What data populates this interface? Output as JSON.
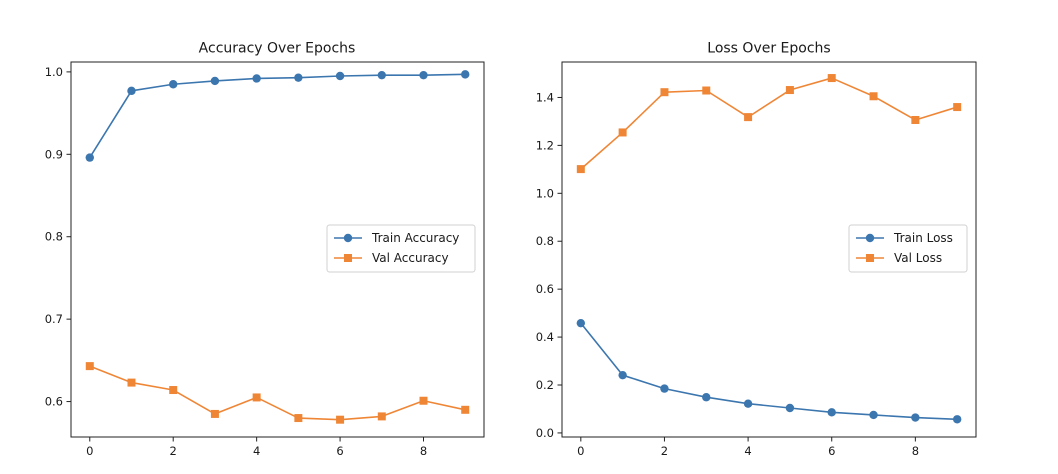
{
  "chart_data": [
    {
      "type": "line",
      "title": "Accuracy Over Epochs",
      "xlabel": "",
      "ylabel": "",
      "x": [
        0,
        1,
        2,
        3,
        4,
        5,
        6,
        7,
        8,
        9
      ],
      "xlim": [
        -0.45,
        9.45
      ],
      "ylim": [
        0.557,
        1.012
      ],
      "xticks": [
        0,
        2,
        4,
        6,
        8
      ],
      "yticks": [
        0.6,
        0.7,
        0.8,
        0.9,
        1.0
      ],
      "ytick_labels": [
        "0.6",
        "0.7",
        "0.8",
        "0.9",
        "1.0"
      ],
      "grid": false,
      "legend_position": "center-right",
      "series": [
        {
          "name": "Train Accuracy",
          "marker": "circle",
          "color": "#3c76af",
          "values": [
            0.896,
            0.977,
            0.985,
            0.989,
            0.992,
            0.993,
            0.995,
            0.996,
            0.996,
            0.997
          ]
        },
        {
          "name": "Val Accuracy",
          "marker": "square",
          "color": "#ef8636",
          "values": [
            0.643,
            0.623,
            0.614,
            0.585,
            0.605,
            0.58,
            0.578,
            0.582,
            0.601,
            0.59
          ]
        }
      ]
    },
    {
      "type": "line",
      "title": "Loss Over Epochs",
      "xlabel": "",
      "ylabel": "",
      "x": [
        0,
        1,
        2,
        3,
        4,
        5,
        6,
        7,
        8,
        9
      ],
      "xlim": [
        -0.45,
        9.45
      ],
      "ylim": [
        -0.017,
        1.548
      ],
      "xticks": [
        0,
        2,
        4,
        6,
        8
      ],
      "yticks": [
        0.0,
        0.2,
        0.4,
        0.6,
        0.8,
        1.0,
        1.2,
        1.4
      ],
      "ytick_labels": [
        "0.0",
        "0.2",
        "0.4",
        "0.6",
        "0.8",
        "1.0",
        "1.2",
        "1.4"
      ],
      "grid": false,
      "legend_position": "center-right",
      "series": [
        {
          "name": "Train Loss",
          "marker": "circle",
          "color": "#3c76af",
          "values": [
            0.458,
            0.241,
            0.185,
            0.149,
            0.122,
            0.104,
            0.086,
            0.075,
            0.064,
            0.057
          ]
        },
        {
          "name": "Val Loss",
          "marker": "square",
          "color": "#ef8636",
          "values": [
            1.101,
            1.254,
            1.422,
            1.429,
            1.318,
            1.431,
            1.481,
            1.405,
            1.306,
            1.36
          ]
        }
      ]
    }
  ]
}
